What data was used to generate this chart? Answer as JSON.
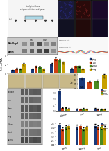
{
  "bg_color": "#f0f0f0",
  "panel_e_groups": [
    "Aging",
    "AT1al",
    "LdPKO",
    "Young"
  ],
  "panel_e_colors": [
    "#1a3a7a",
    "#d04010",
    "#4a8a20",
    "#c8a000"
  ],
  "panel_e_genes": [
    "Ucp1",
    "Fgf21",
    "Pdk4",
    "Mcad"
  ],
  "panel_e_data": {
    "Ucp1": [
      0.7,
      1.1,
      1.0,
      2.0
    ],
    "Fgf21": [
      1.0,
      1.5,
      1.4,
      0.9
    ],
    "Pdk4": [
      2.0,
      3.2,
      2.9,
      2.4
    ],
    "Mcad": [
      1.1,
      1.6,
      1.5,
      1.0
    ]
  },
  "panel_e_errors": {
    "Ucp1": [
      0.08,
      0.15,
      0.12,
      0.25
    ],
    "Fgf21": [
      0.1,
      0.18,
      0.14,
      0.1
    ],
    "Pdk4": [
      0.25,
      0.35,
      0.3,
      0.2
    ],
    "Mcad": [
      0.12,
      0.16,
      0.14,
      0.1
    ]
  },
  "panel_f_groups": [
    "Aging",
    "AT1al",
    "LdPKO",
    "Young"
  ],
  "panel_f_colors": [
    "#1a3a7a",
    "#d04010",
    "#4a8a20",
    "#c8a000"
  ],
  "panel_f_values": [
    1.1,
    0.75,
    0.85,
    1.4
  ],
  "panel_f_errors": [
    0.13,
    0.09,
    0.1,
    0.18
  ],
  "panel_g_tissues": [
    "Adipose",
    "Liver",
    "Brain",
    "Lung",
    "Kidney",
    "Heart",
    "GAPDH"
  ],
  "panel_g_band_colors": [
    "#505050",
    "#606060",
    "#484848",
    "#585858",
    "#787878",
    "#686868",
    "#404040"
  ],
  "panel_h1_groups": [
    "Aging",
    "AT1al",
    "LdPKO",
    "Young"
  ],
  "panel_h1_colors": [
    "#1a3a7a",
    "#d04010",
    "#4a8a20",
    "#c8a000"
  ],
  "panel_h1_xgroups": [
    "Adipose",
    "Liver",
    "Kidney"
  ],
  "panel_h1_data": {
    "Aging": [
      3.2,
      0.35,
      0.4
    ],
    "AT1al": [
      0.5,
      0.32,
      0.28
    ],
    "LdPKO": [
      0.55,
      0.38,
      0.32
    ],
    "Young": [
      0.38,
      0.3,
      0.28
    ]
  },
  "panel_h1_errors": {
    "Aging": [
      0.35,
      0.04,
      0.05
    ],
    "AT1al": [
      0.05,
      0.03,
      0.03
    ],
    "LdPKO": [
      0.06,
      0.04,
      0.03
    ],
    "Young": [
      0.04,
      0.03,
      0.03
    ]
  },
  "panel_h2_groups": [
    "Aging",
    "AT1al",
    "LdPKO",
    "Young"
  ],
  "panel_h2_colors": [
    "#1a3a7a",
    "#d04010",
    "#4a8a20",
    "#c8a000"
  ],
  "panel_h2_xgroups": [
    "Aging",
    "Kidney",
    "Brain"
  ],
  "panel_h2_data": {
    "Aging": [
      1.15,
      1.05,
      1.1
    ],
    "AT1al": [
      0.92,
      1.08,
      1.02
    ],
    "LdPKO": [
      1.02,
      0.92,
      1.04
    ],
    "Young": [
      1.08,
      1.0,
      0.98
    ]
  },
  "panel_h2_errors": {
    "Aging": [
      0.1,
      0.11,
      0.1
    ],
    "AT1al": [
      0.09,
      0.1,
      0.09
    ],
    "LdPKO": [
      0.1,
      0.09,
      0.1
    ],
    "Young": [
      0.1,
      0.1,
      0.09
    ]
  }
}
